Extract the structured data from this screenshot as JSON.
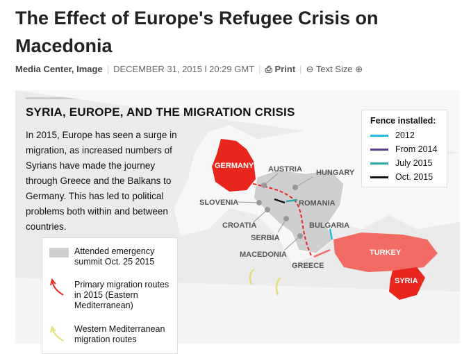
{
  "header": {
    "title": "The Effect of Europe's Refugee Crisis on Macedonia",
    "source": "Media Center, Image",
    "date": "DECEMBER 31, 2015 l 20:29 GMT",
    "print": "Print",
    "text_size": "Text Size"
  },
  "map": {
    "title": "SYRIA, EUROPE, AND THE MIGRATION CRISIS",
    "description": "In 2015, Europe has seen a surge in migration, as increased numbers of Syrians have made the journey through Greece and the Balkans to Germany. This has led to political problems both within and between countries.",
    "fence_legend": {
      "title": "Fence installed:",
      "items": [
        {
          "label": "2012",
          "color": "#29b6e8"
        },
        {
          "label": "From 2014",
          "color": "#5b3f8c"
        },
        {
          "label": "July 2015",
          "color": "#2aa8a8"
        },
        {
          "label": "Oct. 2015",
          "color": "#111111"
        }
      ]
    },
    "legend": [
      "Attended emergency summit Oct. 25 2015",
      "Primary migration routes in 2015 (Eastern Mediterranean)",
      "Western Mediterranean migration routes"
    ],
    "labels": [
      "GERMANY",
      "AUSTRIA",
      "HUNGARY",
      "SLOVENIA",
      "ROMANIA",
      "CROATIA",
      "BULGARIA",
      "SERBIA",
      "MACEDONIA",
      "GREECE",
      "TURKEY",
      "SYRIA"
    ]
  }
}
